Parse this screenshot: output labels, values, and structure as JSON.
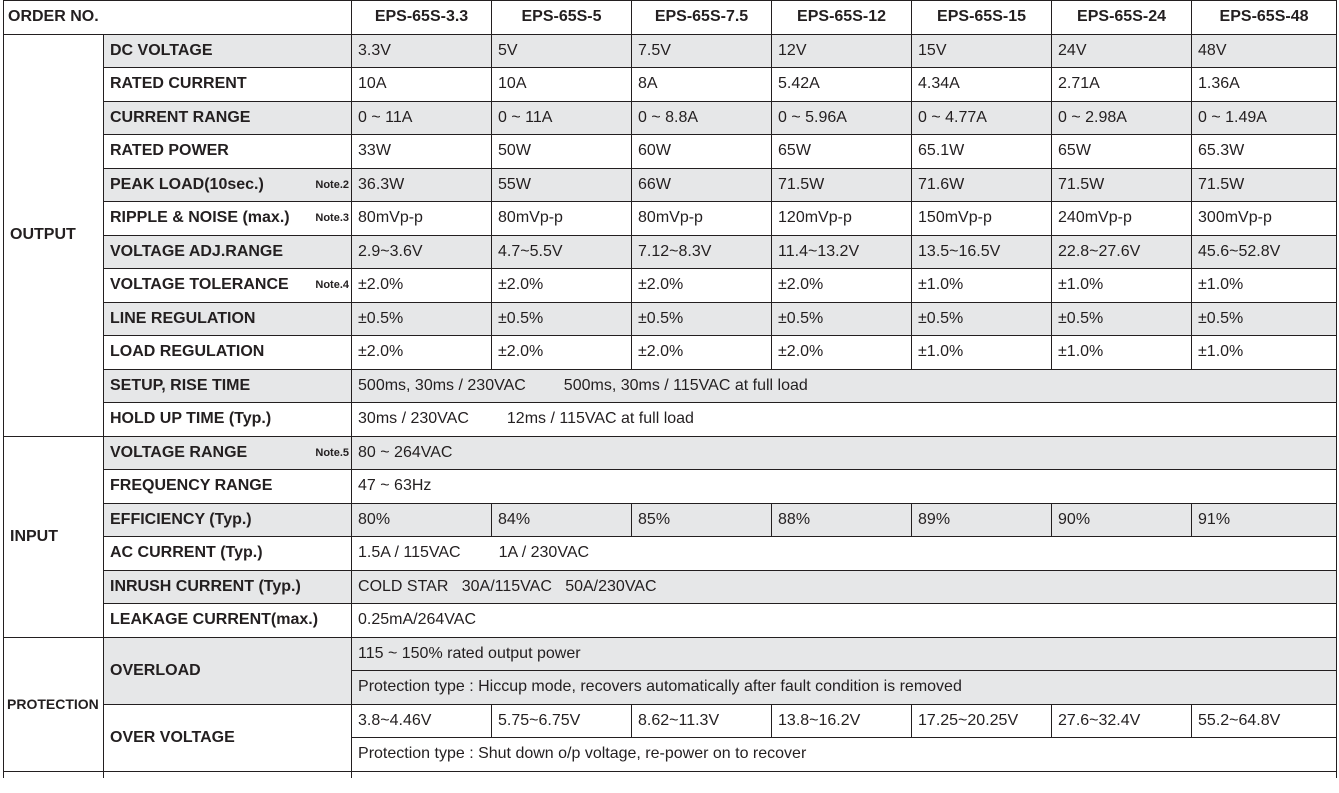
{
  "header": {
    "order_no": "ORDER NO.",
    "models": [
      "EPS-65S-3.3",
      "EPS-65S-5",
      "EPS-65S-7.5",
      "EPS-65S-12",
      "EPS-65S-15",
      "EPS-65S-24",
      "EPS-65S-48"
    ]
  },
  "sections": {
    "output": "OUTPUT",
    "input": "INPUT",
    "protection": "PROTECTION"
  },
  "output": {
    "dc_voltage": {
      "label": "DC VOLTAGE",
      "values": [
        "3.3V",
        "5V",
        "7.5V",
        "12V",
        "15V",
        "24V",
        "48V"
      ]
    },
    "rated_current": {
      "label": "RATED CURRENT",
      "values": [
        "10A",
        "10A",
        "8A",
        "5.42A",
        "4.34A",
        "2.71A",
        "1.36A"
      ]
    },
    "current_range": {
      "label": "CURRENT RANGE",
      "values": [
        "0 ~ 11A",
        "0 ~ 11A",
        "0 ~ 8.8A",
        "0 ~ 5.96A",
        "0 ~ 4.77A",
        "0 ~ 2.98A",
        "0 ~ 1.49A"
      ]
    },
    "rated_power": {
      "label": "RATED POWER",
      "values": [
        "33W",
        "50W",
        "60W",
        "65W",
        "65.1W",
        "65W",
        "65.3W"
      ]
    },
    "peak_load": {
      "label": "PEAK LOAD(10sec.)",
      "note": "Note.2",
      "values": [
        "36.3W",
        "55W",
        "66W",
        "71.5W",
        "71.6W",
        "71.5W",
        "71.5W"
      ]
    },
    "ripple_noise": {
      "label": "RIPPLE & NOISE (max.)",
      "note": "Note.3",
      "values": [
        "80mVp-p",
        "80mVp-p",
        "80mVp-p",
        "120mVp-p",
        "150mVp-p",
        "240mVp-p",
        "300mVp-p"
      ]
    },
    "voltage_adj": {
      "label": "VOLTAGE ADJ.RANGE",
      "values": [
        "2.9~3.6V",
        "4.7~5.5V",
        "7.12~8.3V",
        "11.4~13.2V",
        "13.5~16.5V",
        "22.8~27.6V",
        "45.6~52.8V"
      ]
    },
    "voltage_tolerance": {
      "label": "VOLTAGE TOLERANCE",
      "note": "Note.4",
      "values": [
        "±2.0%",
        "±2.0%",
        "±2.0%",
        "±2.0%",
        "±1.0%",
        "±1.0%",
        "±1.0%"
      ]
    },
    "line_regulation": {
      "label": "LINE REGULATION",
      "values": [
        "±0.5%",
        "±0.5%",
        "±0.5%",
        "±0.5%",
        "±0.5%",
        "±0.5%",
        "±0.5%"
      ]
    },
    "load_regulation": {
      "label": "LOAD REGULATION",
      "values": [
        "±2.0%",
        "±2.0%",
        "±2.0%",
        "±2.0%",
        "±1.0%",
        "±1.0%",
        "±1.0%"
      ]
    },
    "setup_rise": {
      "label": "SETUP, RISE TIME",
      "part1": "500ms, 30ms / 230VAC",
      "part2": "500ms, 30ms / 115VAC  at full load"
    },
    "hold_up": {
      "label": "HOLD UP TIME (Typ.)",
      "part1": "30ms / 230VAC",
      "part2": "12ms / 115VAC  at full load"
    }
  },
  "input": {
    "voltage_range": {
      "label": "VOLTAGE RANGE",
      "note": "Note.5",
      "value": "80 ~ 264VAC"
    },
    "frequency_range": {
      "label": "FREQUENCY RANGE",
      "value": "47 ~ 63Hz"
    },
    "efficiency": {
      "label": "EFFICIENCY (Typ.)",
      "values": [
        "80%",
        "84%",
        "85%",
        "88%",
        "89%",
        "90%",
        "91%"
      ]
    },
    "ac_current": {
      "label": "AC CURRENT (Typ.)",
      "part1": "1.5A / 115VAC",
      "part2": "1A / 230VAC"
    },
    "inrush_current": {
      "label": "INRUSH CURRENT (Typ.)",
      "value": "COLD STAR   30A/115VAC   50A/230VAC"
    },
    "leakage_current": {
      "label": "LEAKAGE CURRENT(max.)",
      "value": "0.25mA/264VAC"
    }
  },
  "protection": {
    "overload": {
      "label": "OVERLOAD",
      "line1": "115 ~ 150%  rated output power",
      "line2": "Protection type : Hiccup mode, recovers automatically after fault condition is removed"
    },
    "over_voltage": {
      "label": "OVER VOLTAGE",
      "values": [
        "3.8~4.46V",
        "5.75~6.75V",
        "8.62~11.3V",
        "13.8~16.2V",
        "17.25~20.25V",
        "27.6~32.4V",
        "55.2~64.8V"
      ],
      "line2": "Protection type : Shut down o/p voltage, re-power on to recover"
    }
  }
}
